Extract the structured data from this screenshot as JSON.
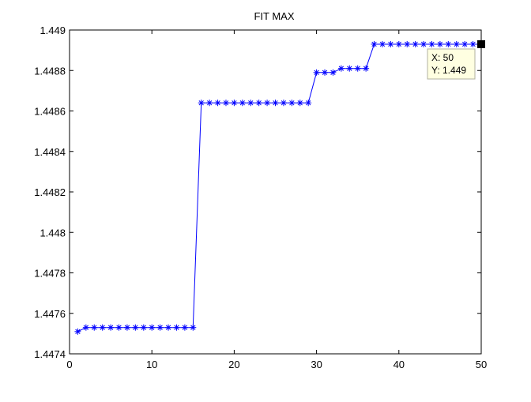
{
  "chart_data": {
    "type": "line",
    "title": "FIT MAX",
    "xlabel": "",
    "ylabel": "",
    "xlim": [
      0,
      50
    ],
    "ylim": [
      1.4474,
      1.449
    ],
    "x_ticks": [
      0,
      10,
      20,
      30,
      40,
      50
    ],
    "x_tick_labels": [
      "0",
      "10",
      "20",
      "30",
      "40",
      "50"
    ],
    "y_ticks": [
      1.4474,
      1.4476,
      1.4478,
      1.448,
      1.4482,
      1.4484,
      1.4486,
      1.4488,
      1.449
    ],
    "y_tick_labels": [
      "1.4474",
      "1.4476",
      "1.4478",
      "1.448",
      "1.4482",
      "1.4484",
      "1.4486",
      "1.4488",
      "1.449"
    ],
    "grid": false,
    "series": [
      {
        "color": "#0000ff",
        "marker": "asterisk",
        "x": [
          1,
          2,
          3,
          4,
          5,
          6,
          7,
          8,
          9,
          10,
          11,
          12,
          13,
          14,
          15,
          16,
          17,
          18,
          19,
          20,
          21,
          22,
          23,
          24,
          25,
          26,
          27,
          28,
          29,
          30,
          31,
          32,
          33,
          34,
          35,
          36,
          37,
          38,
          39,
          40,
          41,
          42,
          43,
          44,
          45,
          46,
          47,
          48,
          49,
          50
        ],
        "values": [
          1.44751,
          1.44753,
          1.44753,
          1.44753,
          1.44753,
          1.44753,
          1.44753,
          1.44753,
          1.44753,
          1.44753,
          1.44753,
          1.44753,
          1.44753,
          1.44753,
          1.44753,
          1.44864,
          1.44864,
          1.44864,
          1.44864,
          1.44864,
          1.44864,
          1.44864,
          1.44864,
          1.44864,
          1.44864,
          1.44864,
          1.44864,
          1.44864,
          1.44864,
          1.44879,
          1.44879,
          1.44879,
          1.44881,
          1.44881,
          1.44881,
          1.44881,
          1.44893,
          1.44893,
          1.44893,
          1.44893,
          1.44893,
          1.44893,
          1.44893,
          1.44893,
          1.44893,
          1.44893,
          1.44893,
          1.44893,
          1.44893,
          1.44893
        ]
      }
    ],
    "datatip": {
      "x_text": "X: 50",
      "y_text": "Y: 1.449",
      "x": 50,
      "y": 1.44893
    }
  }
}
